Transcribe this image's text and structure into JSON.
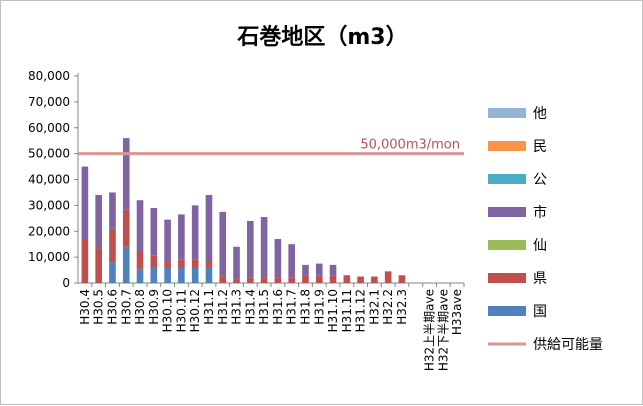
{
  "chart_data": {
    "type": "bar",
    "stacked": true,
    "title": "石巻地区（m3）",
    "ylim": [
      0,
      80000
    ],
    "yticks": [
      "0",
      "10,000",
      "20,000",
      "30,000",
      "40,000",
      "50,000",
      "60,000",
      "70,000",
      "80,000"
    ],
    "grid": false,
    "legend_position": "right",
    "categories": [
      "H30.4",
      "H30.5",
      "H30.6",
      "H30.7",
      "H30.8",
      "H30.9",
      "H30.10",
      "H30.11",
      "H30.12",
      "H31.1",
      "H31.2",
      "H31.3",
      "H31.4",
      "H31.5",
      "H31.6",
      "H31.7",
      "H31.8",
      "H31.9",
      "H31.10",
      "H31.11",
      "H31.12",
      "H32.1",
      "H32.2",
      "H32.3",
      "",
      "H32上半期ave",
      "H32下半期ave",
      "H33ave"
    ],
    "series": [
      {
        "name": "国",
        "color": "#4f81bd",
        "values": [
          0,
          0,
          8000,
          14000,
          5500,
          6000,
          6000,
          6000,
          6000,
          6000,
          0,
          0,
          0,
          0,
          0,
          0,
          0,
          0,
          0,
          0,
          0,
          0,
          0,
          0,
          0,
          0,
          0,
          0
        ]
      },
      {
        "name": "県",
        "color": "#c0504d",
        "values": [
          17000,
          13500,
          13000,
          14500,
          6500,
          4500,
          2500,
          3000,
          3000,
          2500,
          3000,
          1500,
          2000,
          2000,
          2000,
          2000,
          3000,
          3000,
          3000,
          3000,
          2500,
          2500,
          4500,
          3000,
          0,
          0,
          0,
          0
        ]
      },
      {
        "name": "仙",
        "color": "#9bbb59",
        "values": [
          0,
          0,
          0,
          0,
          0,
          0,
          0,
          0,
          0,
          0,
          0,
          0,
          0,
          0,
          0,
          0,
          0,
          0,
          0,
          0,
          0,
          0,
          0,
          0,
          0,
          0,
          0,
          0
        ]
      },
      {
        "name": "市",
        "color": "#8064a2",
        "values": [
          28000,
          20500,
          14000,
          27500,
          20000,
          18500,
          16000,
          17500,
          21000,
          25500,
          24500,
          12500,
          22000,
          23500,
          15000,
          13000,
          4000,
          4500,
          4000,
          0,
          0,
          0,
          0,
          0,
          0,
          0,
          0,
          0
        ]
      },
      {
        "name": "公",
        "color": "#4bacc6",
        "values": [
          0,
          0,
          0,
          0,
          0,
          0,
          0,
          0,
          0,
          0,
          0,
          0,
          0,
          0,
          0,
          0,
          0,
          0,
          0,
          0,
          0,
          0,
          0,
          0,
          0,
          0,
          0,
          0
        ]
      },
      {
        "name": "民",
        "color": "#f79646",
        "values": [
          0,
          0,
          0,
          0,
          0,
          0,
          0,
          0,
          0,
          0,
          0,
          0,
          0,
          0,
          0,
          0,
          0,
          0,
          0,
          0,
          0,
          0,
          0,
          0,
          0,
          0,
          0,
          0
        ]
      },
      {
        "name": "他",
        "color": "#95b3d7",
        "values": [
          0,
          0,
          0,
          0,
          0,
          0,
          0,
          0,
          0,
          0,
          0,
          0,
          0,
          0,
          0,
          0,
          0,
          0,
          0,
          0,
          0,
          0,
          0,
          0,
          0,
          0,
          0,
          0
        ]
      }
    ],
    "reference_line": {
      "name": "供給可能量",
      "value": 50000,
      "color": "#d99694",
      "label": "50,000m3/mon"
    },
    "legend_order": [
      "他",
      "民",
      "公",
      "市",
      "仙",
      "県",
      "国",
      "供給可能量"
    ]
  }
}
